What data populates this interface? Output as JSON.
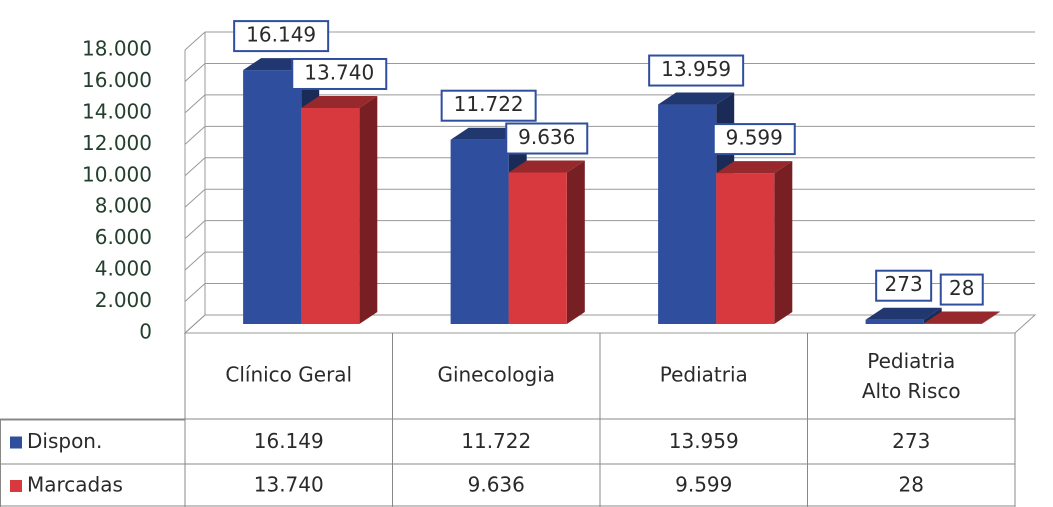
{
  "chart_data": {
    "type": "bar3d",
    "categories": [
      "Clínico Geral",
      "Ginecologia",
      "Pediatria",
      "Pediatria Alto Risco"
    ],
    "series": [
      {
        "name": "Dispon.",
        "color": "#2f4f9e",
        "values": [
          16149,
          11722,
          13959,
          273
        ],
        "value_labels": [
          "16.149",
          "11.722",
          "13.959",
          "273"
        ]
      },
      {
        "name": "Marcadas",
        "color": "#d8393f",
        "values": [
          13740,
          9636,
          9599,
          28
        ],
        "value_labels": [
          "13.740",
          "9.636",
          "9.599",
          "28"
        ]
      }
    ],
    "ylim": [
      0,
      18000
    ],
    "yticks": [
      0,
      {
        "value": 2000,
        "label": "2.000"
      },
      {
        "value": 4000,
        "label": "4.000"
      },
      {
        "value": 6000,
        "label": "6.000"
      },
      {
        "value": 8000,
        "label": "8.000"
      },
      {
        "value": 10000,
        "label": "10.000"
      },
      {
        "value": 12000,
        "label": "12.000"
      },
      {
        "value": 14000,
        "label": "14.000"
      },
      {
        "value": 16000,
        "label": "16.000"
      },
      {
        "value": 18000,
        "label": "18.000"
      }
    ],
    "grid": true,
    "data_table": true
  }
}
